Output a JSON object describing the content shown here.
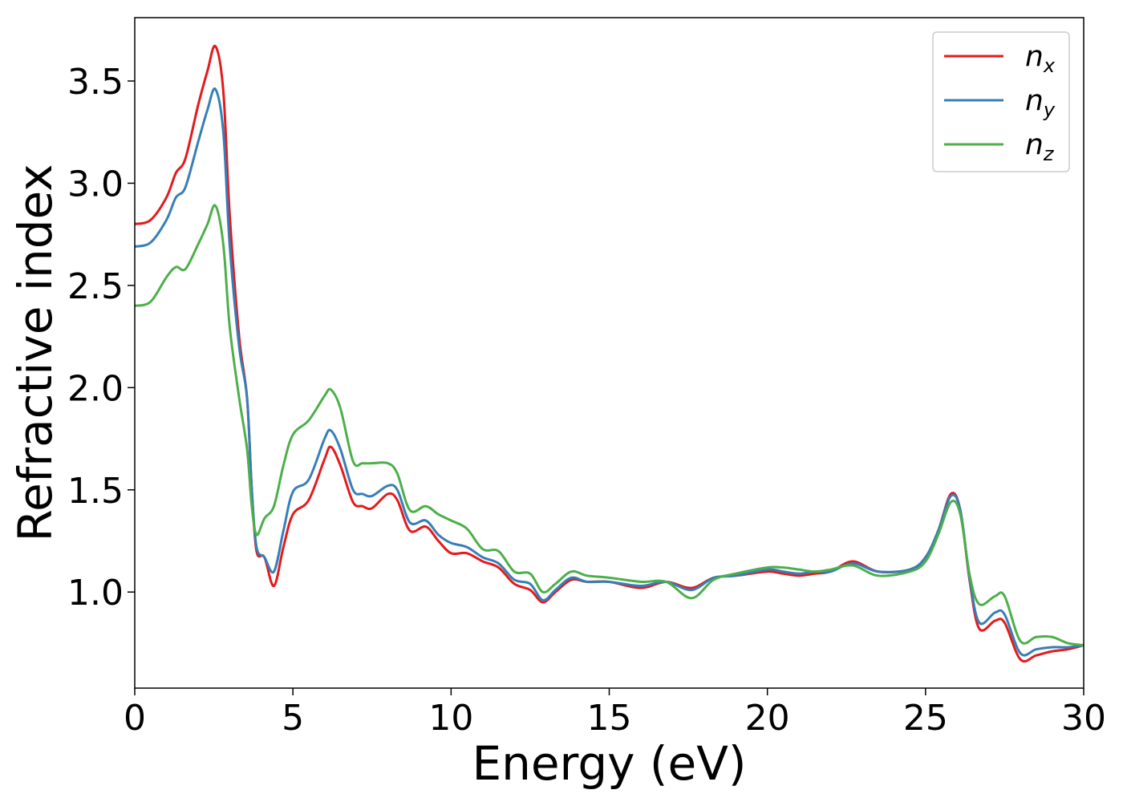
{
  "chart_data": {
    "type": "line",
    "xlabel": "Energy (eV)",
    "ylabel": "Refractive index",
    "xlim": [
      0,
      30
    ],
    "ylim": [
      0.53,
      3.81
    ],
    "xticks": [
      0,
      5,
      10,
      15,
      20,
      25,
      30
    ],
    "xtick_labels": [
      "0",
      "5",
      "10",
      "15",
      "20",
      "25",
      "30"
    ],
    "yticks": [
      1.0,
      1.5,
      2.0,
      2.5,
      3.0,
      3.5
    ],
    "ytick_labels": [
      "1.0",
      "1.5",
      "2.0",
      "2.5",
      "3.0",
      "3.5"
    ],
    "grid": false,
    "legend_position": "top-right",
    "series": [
      {
        "name": "n",
        "subscript": "x",
        "color": "#e41a1c",
        "points": [
          [
            0,
            2.8
          ],
          [
            0.5,
            2.82
          ],
          [
            1,
            2.93
          ],
          [
            1.3,
            3.05
          ],
          [
            1.6,
            3.12
          ],
          [
            2,
            3.38
          ],
          [
            2.3,
            3.55
          ],
          [
            2.55,
            3.67
          ],
          [
            2.8,
            3.45
          ],
          [
            3,
            2.85
          ],
          [
            3.3,
            2.25
          ],
          [
            3.55,
            1.95
          ],
          [
            3.7,
            1.5
          ],
          [
            3.85,
            1.2
          ],
          [
            4.1,
            1.17
          ],
          [
            4.4,
            1.03
          ],
          [
            4.7,
            1.22
          ],
          [
            5,
            1.38
          ],
          [
            5.5,
            1.45
          ],
          [
            6,
            1.65
          ],
          [
            6.2,
            1.71
          ],
          [
            6.5,
            1.62
          ],
          [
            6.9,
            1.44
          ],
          [
            7.2,
            1.42
          ],
          [
            7.5,
            1.41
          ],
          [
            8,
            1.48
          ],
          [
            8.3,
            1.45
          ],
          [
            8.7,
            1.3
          ],
          [
            9.2,
            1.32
          ],
          [
            9.6,
            1.25
          ],
          [
            10,
            1.19
          ],
          [
            10.5,
            1.19
          ],
          [
            11,
            1.15
          ],
          [
            11.5,
            1.12
          ],
          [
            12,
            1.04
          ],
          [
            12.5,
            1.01
          ],
          [
            12.9,
            0.95
          ],
          [
            13.3,
            1
          ],
          [
            13.8,
            1.06
          ],
          [
            14.3,
            1.05
          ],
          [
            15,
            1.05
          ],
          [
            16,
            1.02
          ],
          [
            16.8,
            1.05
          ],
          [
            17.6,
            1.02
          ],
          [
            18.3,
            1.07
          ],
          [
            19,
            1.08
          ],
          [
            20,
            1.1
          ],
          [
            20.5,
            1.09
          ],
          [
            21,
            1.08
          ],
          [
            21.5,
            1.09
          ],
          [
            22,
            1.1
          ],
          [
            22.7,
            1.15
          ],
          [
            23.5,
            1.1
          ],
          [
            24.5,
            1.11
          ],
          [
            25,
            1.17
          ],
          [
            25.4,
            1.3
          ],
          [
            25.8,
            1.48
          ],
          [
            26.1,
            1.4
          ],
          [
            26.4,
            1.05
          ],
          [
            26.7,
            0.82
          ],
          [
            27.2,
            0.86
          ],
          [
            27.5,
            0.85
          ],
          [
            28,
            0.67
          ],
          [
            28.5,
            0.69
          ],
          [
            29,
            0.71
          ],
          [
            29.5,
            0.72
          ],
          [
            30,
            0.74
          ]
        ]
      },
      {
        "name": "n",
        "subscript": "y",
        "color": "#377eb8",
        "points": [
          [
            0,
            2.69
          ],
          [
            0.5,
            2.71
          ],
          [
            1,
            2.82
          ],
          [
            1.3,
            2.93
          ],
          [
            1.6,
            2.98
          ],
          [
            2,
            3.2
          ],
          [
            2.3,
            3.36
          ],
          [
            2.55,
            3.46
          ],
          [
            2.8,
            3.25
          ],
          [
            3,
            2.7
          ],
          [
            3.3,
            2.2
          ],
          [
            3.55,
            1.95
          ],
          [
            3.7,
            1.5
          ],
          [
            3.85,
            1.22
          ],
          [
            4.1,
            1.17
          ],
          [
            4.4,
            1.1
          ],
          [
            4.7,
            1.3
          ],
          [
            5,
            1.49
          ],
          [
            5.5,
            1.55
          ],
          [
            6,
            1.75
          ],
          [
            6.2,
            1.79
          ],
          [
            6.5,
            1.7
          ],
          [
            6.9,
            1.5
          ],
          [
            7.2,
            1.48
          ],
          [
            7.5,
            1.47
          ],
          [
            8,
            1.52
          ],
          [
            8.3,
            1.5
          ],
          [
            8.7,
            1.34
          ],
          [
            9.2,
            1.35
          ],
          [
            9.6,
            1.28
          ],
          [
            10,
            1.24
          ],
          [
            10.5,
            1.22
          ],
          [
            11,
            1.17
          ],
          [
            11.5,
            1.14
          ],
          [
            12,
            1.06
          ],
          [
            12.5,
            1.04
          ],
          [
            12.9,
            0.96
          ],
          [
            13.3,
            1.01
          ],
          [
            13.8,
            1.07
          ],
          [
            14.3,
            1.05
          ],
          [
            15,
            1.05
          ],
          [
            16,
            1.03
          ],
          [
            16.8,
            1.05
          ],
          [
            17.6,
            1.01
          ],
          [
            18.3,
            1.07
          ],
          [
            19,
            1.08
          ],
          [
            20,
            1.11
          ],
          [
            20.5,
            1.1
          ],
          [
            21,
            1.09
          ],
          [
            21.5,
            1.1
          ],
          [
            22,
            1.1
          ],
          [
            22.7,
            1.14
          ],
          [
            23.5,
            1.1
          ],
          [
            24.5,
            1.11
          ],
          [
            25,
            1.17
          ],
          [
            25.4,
            1.3
          ],
          [
            25.8,
            1.47
          ],
          [
            26.1,
            1.4
          ],
          [
            26.4,
            1.06
          ],
          [
            26.7,
            0.85
          ],
          [
            27.2,
            0.9
          ],
          [
            27.5,
            0.89
          ],
          [
            28,
            0.7
          ],
          [
            28.5,
            0.72
          ],
          [
            29,
            0.73
          ],
          [
            29.5,
            0.73
          ],
          [
            30,
            0.74
          ]
        ]
      },
      {
        "name": "n",
        "subscript": "z",
        "color": "#4daf4a",
        "points": [
          [
            0,
            2.4
          ],
          [
            0.5,
            2.42
          ],
          [
            1,
            2.54
          ],
          [
            1.3,
            2.59
          ],
          [
            1.6,
            2.58
          ],
          [
            2,
            2.7
          ],
          [
            2.3,
            2.8
          ],
          [
            2.55,
            2.89
          ],
          [
            2.8,
            2.7
          ],
          [
            3,
            2.3
          ],
          [
            3.3,
            1.95
          ],
          [
            3.55,
            1.7
          ],
          [
            3.7,
            1.42
          ],
          [
            3.85,
            1.28
          ],
          [
            4.1,
            1.36
          ],
          [
            4.4,
            1.42
          ],
          [
            4.7,
            1.62
          ],
          [
            5,
            1.77
          ],
          [
            5.5,
            1.84
          ],
          [
            6,
            1.96
          ],
          [
            6.2,
            1.99
          ],
          [
            6.5,
            1.9
          ],
          [
            6.9,
            1.64
          ],
          [
            7.2,
            1.63
          ],
          [
            7.5,
            1.63
          ],
          [
            8,
            1.63
          ],
          [
            8.3,
            1.58
          ],
          [
            8.7,
            1.4
          ],
          [
            9.2,
            1.42
          ],
          [
            9.6,
            1.38
          ],
          [
            10,
            1.35
          ],
          [
            10.5,
            1.31
          ],
          [
            11,
            1.21
          ],
          [
            11.5,
            1.2
          ],
          [
            12,
            1.1
          ],
          [
            12.5,
            1.09
          ],
          [
            12.9,
            1
          ],
          [
            13.3,
            1.04
          ],
          [
            13.8,
            1.1
          ],
          [
            14.3,
            1.08
          ],
          [
            15,
            1.07
          ],
          [
            16,
            1.05
          ],
          [
            16.8,
            1.05
          ],
          [
            17.6,
            0.97
          ],
          [
            18.3,
            1.06
          ],
          [
            19,
            1.09
          ],
          [
            20,
            1.12
          ],
          [
            20.5,
            1.12
          ],
          [
            21,
            1.11
          ],
          [
            21.5,
            1.1
          ],
          [
            22,
            1.11
          ],
          [
            22.7,
            1.13
          ],
          [
            23.5,
            1.08
          ],
          [
            24.5,
            1.1
          ],
          [
            25,
            1.15
          ],
          [
            25.4,
            1.28
          ],
          [
            25.8,
            1.44
          ],
          [
            26.1,
            1.38
          ],
          [
            26.4,
            1.08
          ],
          [
            26.7,
            0.94
          ],
          [
            27.2,
            0.98
          ],
          [
            27.5,
            0.98
          ],
          [
            28,
            0.76
          ],
          [
            28.5,
            0.78
          ],
          [
            29,
            0.78
          ],
          [
            29.5,
            0.75
          ],
          [
            30,
            0.74
          ]
        ]
      }
    ]
  }
}
